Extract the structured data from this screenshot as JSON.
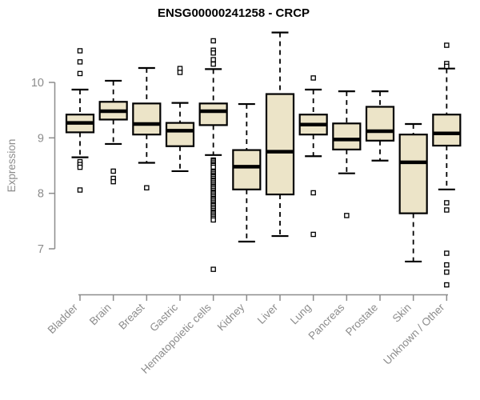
{
  "chart_data": {
    "type": "boxplot",
    "title": "ENSG00000241258 - CRCP",
    "ylabel": "Expression",
    "xlabel": "",
    "y_ticks": [
      7,
      8,
      9,
      10
    ],
    "y_axis_drawn_range": [
      7,
      10
    ],
    "grid": false,
    "legend": "none",
    "box_fill_color": "#ece4c8",
    "box_line_color": "#000000",
    "axis_color": "#8c8c8c",
    "title_color": "#000000",
    "categories": [
      "Bladder",
      "Brain",
      "Breast",
      "Gastric",
      "Hematopoietic cells",
      "Kidney",
      "Liver",
      "Lung",
      "Pancreas",
      "Prostate",
      "Skin",
      "Unknown / Other"
    ],
    "boxes": [
      {
        "label": "Bladder",
        "whisker_low": 8.65,
        "q1": 9.1,
        "median": 9.27,
        "q3": 9.42,
        "whisker_high": 9.87,
        "outliers": [
          10.57,
          10.37,
          10.16,
          8.57,
          8.52,
          8.47,
          8.06
        ]
      },
      {
        "label": "Brain",
        "whisker_low": 8.89,
        "q1": 9.33,
        "median": 9.48,
        "q3": 9.65,
        "whisker_high": 10.03,
        "outliers": [
          8.4,
          8.27,
          8.21
        ]
      },
      {
        "label": "Breast",
        "whisker_low": 8.55,
        "q1": 9.06,
        "median": 9.25,
        "q3": 9.62,
        "whisker_high": 10.26,
        "outliers": [
          8.1
        ]
      },
      {
        "label": "Gastric",
        "whisker_low": 8.4,
        "q1": 8.85,
        "median": 9.13,
        "q3": 9.27,
        "whisker_high": 9.63,
        "outliers": [
          10.25,
          10.18
        ]
      },
      {
        "label": "Hematopoietic cells",
        "whisker_low": 8.69,
        "q1": 9.23,
        "median": 9.48,
        "q3": 9.62,
        "whisker_high": 10.24,
        "outliers": [
          10.75,
          10.58,
          10.53,
          10.41,
          10.33,
          8.6,
          8.58,
          8.55,
          8.52,
          8.5,
          8.47,
          8.4,
          8.38,
          8.35,
          8.32,
          8.3,
          8.27,
          8.24,
          8.22,
          8.19,
          8.16,
          8.13,
          8.11,
          8.08,
          8.05,
          8.02,
          8.0,
          7.97,
          7.94,
          7.91,
          7.89,
          7.86,
          7.83,
          7.8,
          7.78,
          7.75,
          7.72,
          7.69,
          7.66,
          7.64,
          7.61,
          7.58,
          7.55,
          7.52,
          6.63
        ]
      },
      {
        "label": "Kidney",
        "whisker_low": 7.13,
        "q1": 8.07,
        "median": 8.48,
        "q3": 8.78,
        "whisker_high": 9.61,
        "outliers": []
      },
      {
        "label": "Liver",
        "whisker_low": 7.23,
        "q1": 7.98,
        "median": 8.75,
        "q3": 9.79,
        "whisker_high": 10.9,
        "outliers": []
      },
      {
        "label": "Lung",
        "whisker_low": 8.67,
        "q1": 9.06,
        "median": 9.24,
        "q3": 9.42,
        "whisker_high": 9.87,
        "outliers": [
          10.08,
          8.01,
          7.26
        ]
      },
      {
        "label": "Pancreas",
        "whisker_low": 8.36,
        "q1": 8.79,
        "median": 8.97,
        "q3": 9.26,
        "whisker_high": 9.84,
        "outliers": [
          7.6
        ]
      },
      {
        "label": "Prostate",
        "whisker_low": 8.59,
        "q1": 8.95,
        "median": 9.12,
        "q3": 9.56,
        "whisker_high": 9.84,
        "outliers": []
      },
      {
        "label": "Skin",
        "whisker_low": 6.77,
        "q1": 7.64,
        "median": 8.56,
        "q3": 9.06,
        "whisker_high": 9.25,
        "outliers": []
      },
      {
        "label": "Unknown / Other",
        "whisker_low": 8.07,
        "q1": 8.86,
        "median": 9.08,
        "q3": 9.42,
        "whisker_high": 10.25,
        "outliers": [
          10.67,
          10.34,
          10.29,
          7.83,
          7.7,
          6.92,
          6.71,
          6.58,
          6.35
        ]
      }
    ]
  }
}
